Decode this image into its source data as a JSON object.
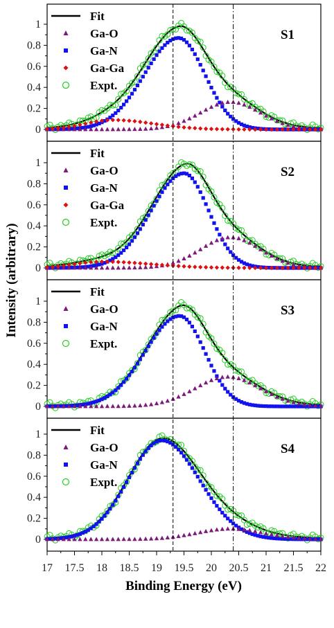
{
  "chart_data": {
    "type": "scatter",
    "xlabel": "Binding Energy (eV)",
    "ylabel": "Intensity (arbitrary)",
    "xlim": [
      17,
      22
    ],
    "ylim": [
      -0.1,
      1.07
    ],
    "x_ticks": [
      "17",
      "17.5",
      "18",
      "18.5",
      "19",
      "19.5",
      "20",
      "20.5",
      "21",
      "21.5",
      "22"
    ],
    "y_ticks": [
      "0",
      "0.2",
      "0.4",
      "0.6",
      "0.8",
      "1"
    ],
    "reference_lines": [
      19.3,
      20.4
    ],
    "colors": {
      "fit": "#000000",
      "ga_o": "#7b1a7b",
      "ga_n": "#1212ee",
      "ga_ga": "#dd1111",
      "expt": "#22cc22"
    },
    "panels": [
      {
        "label": "S1",
        "legend": [
          "Fit",
          "Ga-O",
          "Ga-N",
          "Ga-Ga",
          "Expt."
        ],
        "components": {
          "ga_n": {
            "center": 19.4,
            "amplitude": 0.87,
            "sigma_left": 0.62,
            "sigma_right": 0.48
          },
          "ga_o": {
            "center": 20.35,
            "amplitude": 0.26,
            "sigma_left": 0.55,
            "sigma_right": 0.55
          },
          "ga_ga": {
            "center": 18.2,
            "amplitude": 0.09,
            "sigma_left": 0.5,
            "sigma_right": 0.75
          }
        },
        "fit_peak": {
          "x": 19.5,
          "y": 0.97
        },
        "expt_peak": {
          "x": 19.5,
          "y": 0.97
        }
      },
      {
        "label": "S2",
        "legend": [
          "Fit",
          "Ga-O",
          "Ga-N",
          "Ga-Ga",
          "Expt."
        ],
        "components": {
          "ga_n": {
            "center": 19.5,
            "amplitude": 0.9,
            "sigma_left": 0.6,
            "sigma_right": 0.45
          },
          "ga_o": {
            "center": 20.35,
            "amplitude": 0.29,
            "sigma_left": 0.55,
            "sigma_right": 0.55
          },
          "ga_ga": {
            "center": 18.0,
            "amplitude": 0.06,
            "sigma_left": 0.5,
            "sigma_right": 0.9
          }
        },
        "fit_peak": {
          "x": 19.6,
          "y": 0.98
        },
        "expt_peak": {
          "x": 19.6,
          "y": 0.98
        }
      },
      {
        "label": "S3",
        "legend": [
          "Fit",
          "Ga-O",
          "Ga-N",
          "Expt."
        ],
        "components": {
          "ga_n": {
            "center": 19.42,
            "amplitude": 0.86,
            "sigma_left": 0.63,
            "sigma_right": 0.46
          },
          "ga_o": {
            "center": 20.3,
            "amplitude": 0.28,
            "sigma_left": 0.6,
            "sigma_right": 0.6
          }
        },
        "fit_peak": {
          "x": 19.5,
          "y": 0.95
        },
        "expt_peak": {
          "x": 19.5,
          "y": 0.95
        }
      },
      {
        "label": "S4",
        "legend": [
          "Fit",
          "Ga-O",
          "Ga-N",
          "Expt."
        ],
        "components": {
          "ga_n": {
            "center": 19.1,
            "amplitude": 0.94,
            "sigma_left": 0.62,
            "sigma_right": 0.68
          },
          "ga_o": {
            "center": 20.35,
            "amplitude": 0.1,
            "sigma_left": 0.6,
            "sigma_right": 0.6
          }
        },
        "fit_peak": {
          "x": 19.15,
          "y": 0.95
        },
        "expt_peak": {
          "x": 19.15,
          "y": 0.95
        }
      }
    ]
  }
}
